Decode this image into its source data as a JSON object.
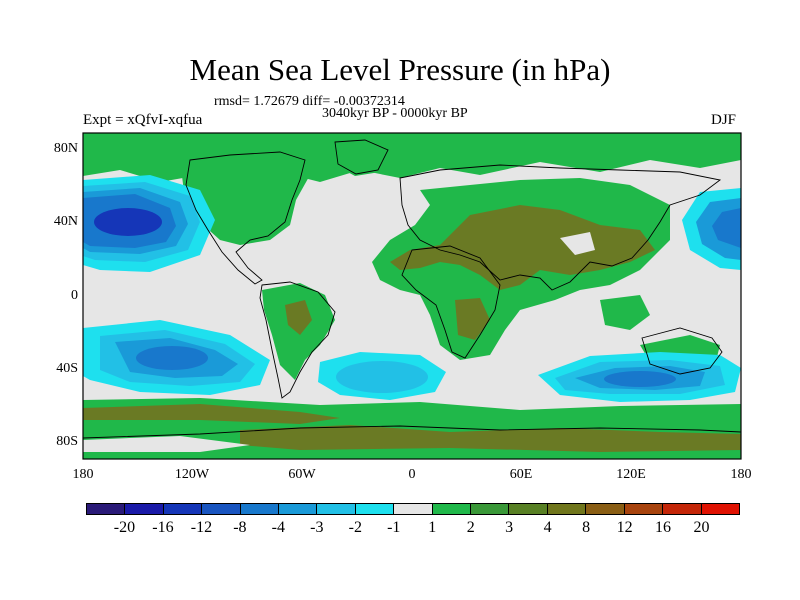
{
  "title": "Mean Sea Level Pressure (in hPa)",
  "stats_line": "rmsd= 1.72679 diff= -0.00372314",
  "period": "3040kyr BP - 0000kyr BP",
  "experiment": "Expt = xQfvI-xqfua",
  "season": "DJF",
  "lat_labels": [
    "80N",
    "40N",
    "0",
    "40S",
    "80S"
  ],
  "lon_labels": [
    "180",
    "120W",
    "60W",
    "0",
    "60E",
    "120E",
    "180"
  ],
  "colorbar": {
    "colors": [
      "#2a1a78",
      "#1a1aa8",
      "#1536b8",
      "#1955c0",
      "#1878cc",
      "#1a9ad8",
      "#22c0e6",
      "#1ee0ee",
      "#e6e6e6",
      "#20b84a",
      "#3a9838",
      "#588024",
      "#70761c",
      "#8a5e14",
      "#a8440e",
      "#c42608",
      "#e01202"
    ],
    "labels": [
      "-20",
      "-16",
      "-12",
      "-8",
      "-4",
      "-3",
      "-2",
      "-1",
      "1",
      "2",
      "3",
      "4",
      "8",
      "12",
      "16",
      "20"
    ]
  },
  "colors": {
    "background": "#e6e6e6",
    "green": "#20b84a",
    "dark_green": "#3a9838",
    "olive": "#6a7a24",
    "cyan": "#1ee0ee",
    "light_blue": "#22c0e6",
    "mid_blue": "#1a9ad8",
    "blue": "#1878cc",
    "deep_blue": "#1536b8",
    "coast": "#000000"
  }
}
